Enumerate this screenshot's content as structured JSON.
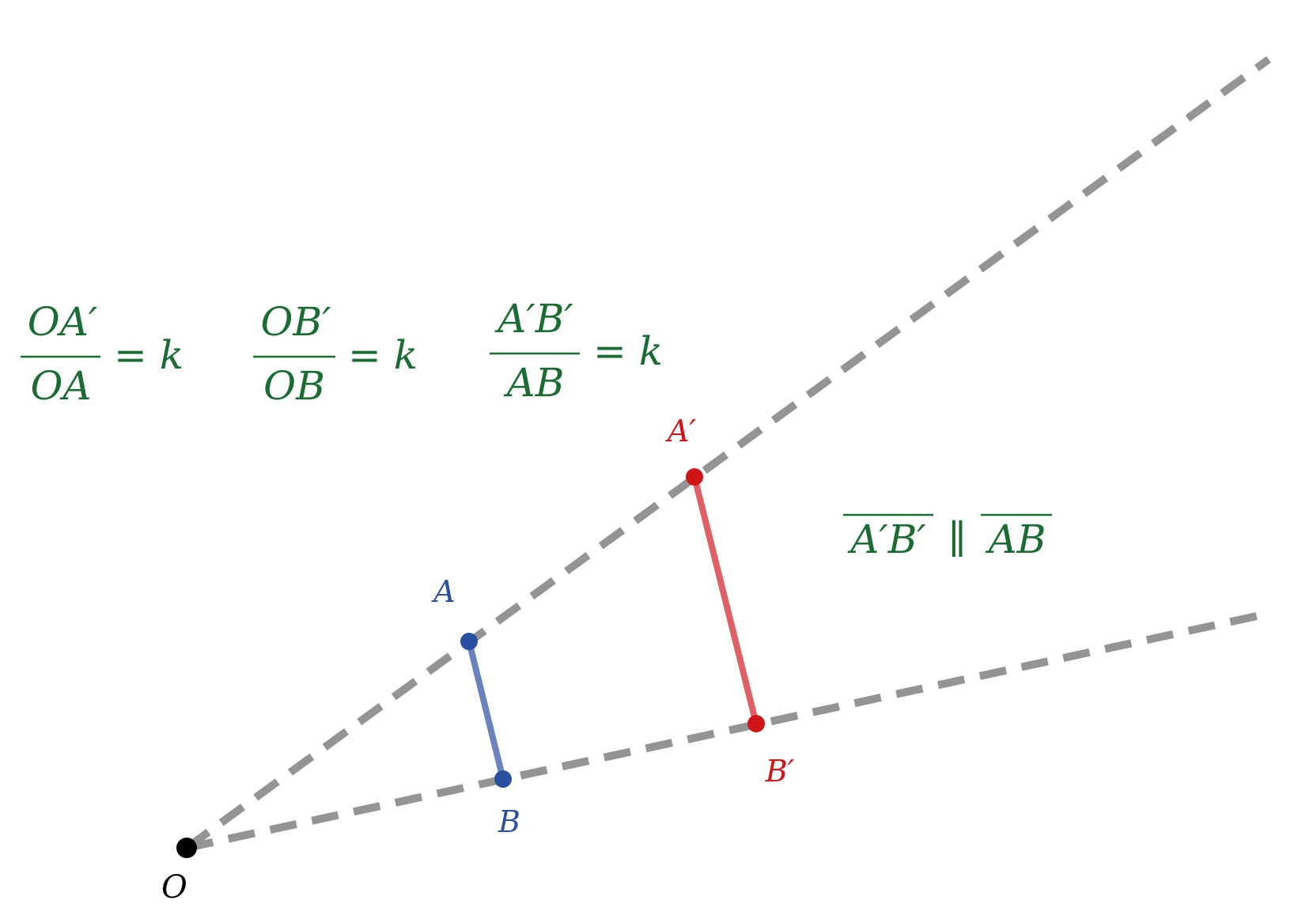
{
  "colors": {
    "ray": "#949494",
    "origin": "#000000",
    "original": "#2a4f9e",
    "original_segment": "#6a83ba",
    "image": "#cf1515",
    "image_segment": "#de6064",
    "formula": "#1b6b34"
  },
  "points": {
    "O": {
      "label": "O"
    },
    "A": {
      "label": "A"
    },
    "B": {
      "label": "B"
    },
    "A_prime": {
      "label": "A′"
    },
    "B_prime": {
      "label": "B′"
    }
  },
  "formulas": {
    "ratio_a": {
      "numerator": "OA′",
      "denominator": "OA",
      "rhs": "= k"
    },
    "ratio_b": {
      "numerator": "OB′",
      "denominator": "OB",
      "rhs": "= k"
    },
    "ratio_ab": {
      "numerator": "A′B′",
      "denominator": "AB",
      "rhs": "= k"
    },
    "parallel": {
      "left": "A′B′",
      "symbol": "∥",
      "right": "AB"
    }
  }
}
